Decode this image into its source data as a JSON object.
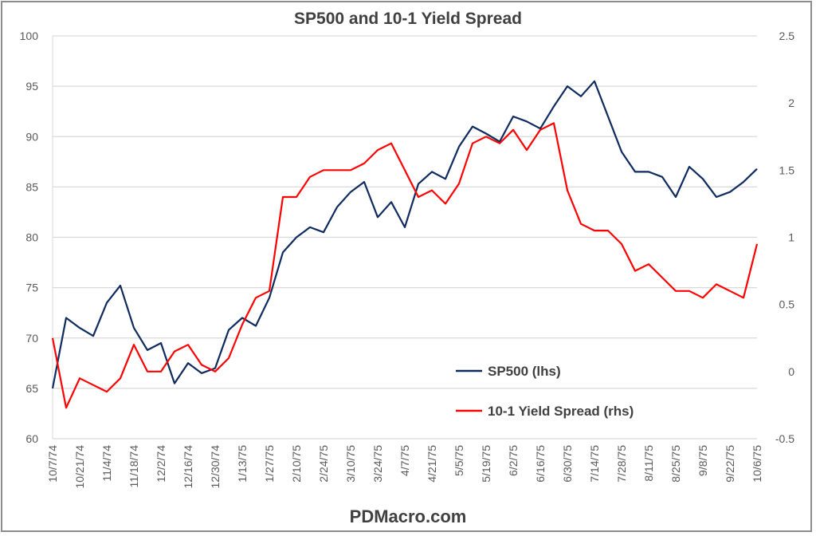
{
  "chart_data": {
    "type": "line",
    "title": "SP500 and 10-1 Yield Spread",
    "footer": "PDMacro.com",
    "legend_position": "bottom-right inside plot",
    "grid": true,
    "y_left": {
      "min": 60,
      "max": 100,
      "ticks": [
        "60",
        "65",
        "70",
        "75",
        "80",
        "85",
        "90",
        "95",
        "100"
      ]
    },
    "y_right": {
      "min": -0.5,
      "max": 2.5,
      "ticks": [
        "-0.5",
        "0",
        "0.5",
        "1",
        "1.5",
        "2",
        "2.5"
      ]
    },
    "x_tick_labels": [
      "10/7/74",
      "10/21/74",
      "11/4/74",
      "11/18/74",
      "12/2/74",
      "12/16/74",
      "12/30/74",
      "1/13/75",
      "1/27/75",
      "2/10/75",
      "2/24/75",
      "3/10/75",
      "3/24/75",
      "4/7/75",
      "4/21/75",
      "5/5/75",
      "5/19/75",
      "6/2/75",
      "6/16/75",
      "6/30/75",
      "7/14/75",
      "7/28/75",
      "8/11/75",
      "8/25/75",
      "9/8/75",
      "9/22/75",
      "10/6/75"
    ],
    "x": [
      "10/7/74",
      "10/14/74",
      "10/21/74",
      "10/28/74",
      "11/4/74",
      "11/11/74",
      "11/18/74",
      "11/25/74",
      "12/2/74",
      "12/9/74",
      "12/16/74",
      "12/23/74",
      "12/30/74",
      "1/6/75",
      "1/13/75",
      "1/20/75",
      "1/27/75",
      "2/3/75",
      "2/10/75",
      "2/17/75",
      "2/24/75",
      "3/3/75",
      "3/10/75",
      "3/17/75",
      "3/24/75",
      "3/31/75",
      "4/7/75",
      "4/14/75",
      "4/21/75",
      "4/28/75",
      "5/5/75",
      "5/12/75",
      "5/19/75",
      "5/26/75",
      "6/2/75",
      "6/9/75",
      "6/16/75",
      "6/23/75",
      "6/30/75",
      "7/7/75",
      "7/14/75",
      "7/21/75",
      "7/28/75",
      "8/4/75",
      "8/11/75",
      "8/18/75",
      "8/25/75",
      "9/1/75",
      "9/8/75",
      "9/15/75",
      "9/22/75",
      "9/29/75",
      "10/6/75"
    ],
    "series": [
      {
        "name": "SP500 (lhs)",
        "axis": "left",
        "color": "#0e2a5e",
        "values": [
          65,
          72,
          71,
          70.2,
          73.5,
          75.2,
          71,
          68.8,
          69.5,
          65.5,
          67.5,
          66.5,
          67,
          70.8,
          72,
          71.2,
          74,
          78.5,
          80,
          81,
          80.5,
          83,
          84.5,
          85.5,
          82,
          83.5,
          81,
          85.3,
          86.5,
          85.8,
          89,
          91,
          90.3,
          89.5,
          92,
          91.5,
          90.8,
          93,
          95,
          94,
          95.5,
          92,
          88.5,
          86.5,
          86.5,
          86,
          84,
          87,
          85.8,
          84,
          84.5,
          85.5,
          86.8
        ]
      },
      {
        "name": "10-1 Yield Spread (rhs)",
        "axis": "right",
        "color": "#ff0000",
        "values": [
          0.25,
          -0.27,
          -0.05,
          -0.1,
          -0.15,
          -0.05,
          0.2,
          0.0,
          0.0,
          0.15,
          0.2,
          0.05,
          0.0,
          0.1,
          0.35,
          0.55,
          0.6,
          1.3,
          1.3,
          1.45,
          1.5,
          1.5,
          1.5,
          1.55,
          1.65,
          1.7,
          1.5,
          1.3,
          1.35,
          1.25,
          1.4,
          1.7,
          1.75,
          1.7,
          1.8,
          1.65,
          1.8,
          1.85,
          1.35,
          1.1,
          1.05,
          1.05,
          0.95,
          0.75,
          0.8,
          0.7,
          0.6,
          0.6,
          0.55,
          0.65,
          0.6,
          0.55,
          0.95
        ]
      }
    ]
  }
}
